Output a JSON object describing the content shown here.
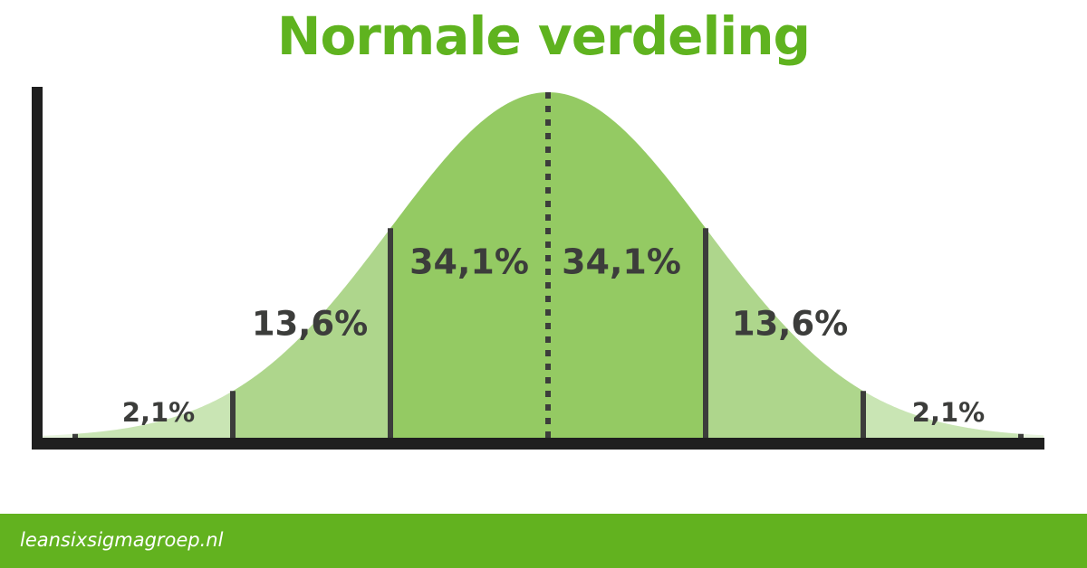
{
  "title": "Normale verdeling",
  "footer": {
    "website": "leansixsigmagroep.nl"
  },
  "colors": {
    "title": "#5fb31f",
    "footer": "#62b21f",
    "band_outer": "#c9e5b4",
    "band_mid": "#aed68c",
    "band_inner": "#94ca63",
    "tail": "#e8f4de",
    "axis": "#1f1f1f",
    "divider": "#3c3d3b"
  },
  "chart_data": {
    "type": "area",
    "title": "Normale verdeling",
    "xlabel": "",
    "ylabel": "",
    "grid": false,
    "sigma_boundaries": [
      -3,
      -2,
      -1,
      0,
      1,
      2,
      3
    ],
    "bands": [
      {
        "from": -3,
        "to": -2,
        "label": "2,1%",
        "value": 2.1
      },
      {
        "from": -2,
        "to": -1,
        "label": "13,6%",
        "value": 13.6
      },
      {
        "from": -1,
        "to": 0,
        "label": "34,1%",
        "value": 34.1
      },
      {
        "from": 0,
        "to": 1,
        "label": "34,1%",
        "value": 34.1
      },
      {
        "from": 1,
        "to": 2,
        "label": "13,6%",
        "value": 13.6
      },
      {
        "from": 2,
        "to": 3,
        "label": "2,1%",
        "value": 2.1
      }
    ]
  }
}
